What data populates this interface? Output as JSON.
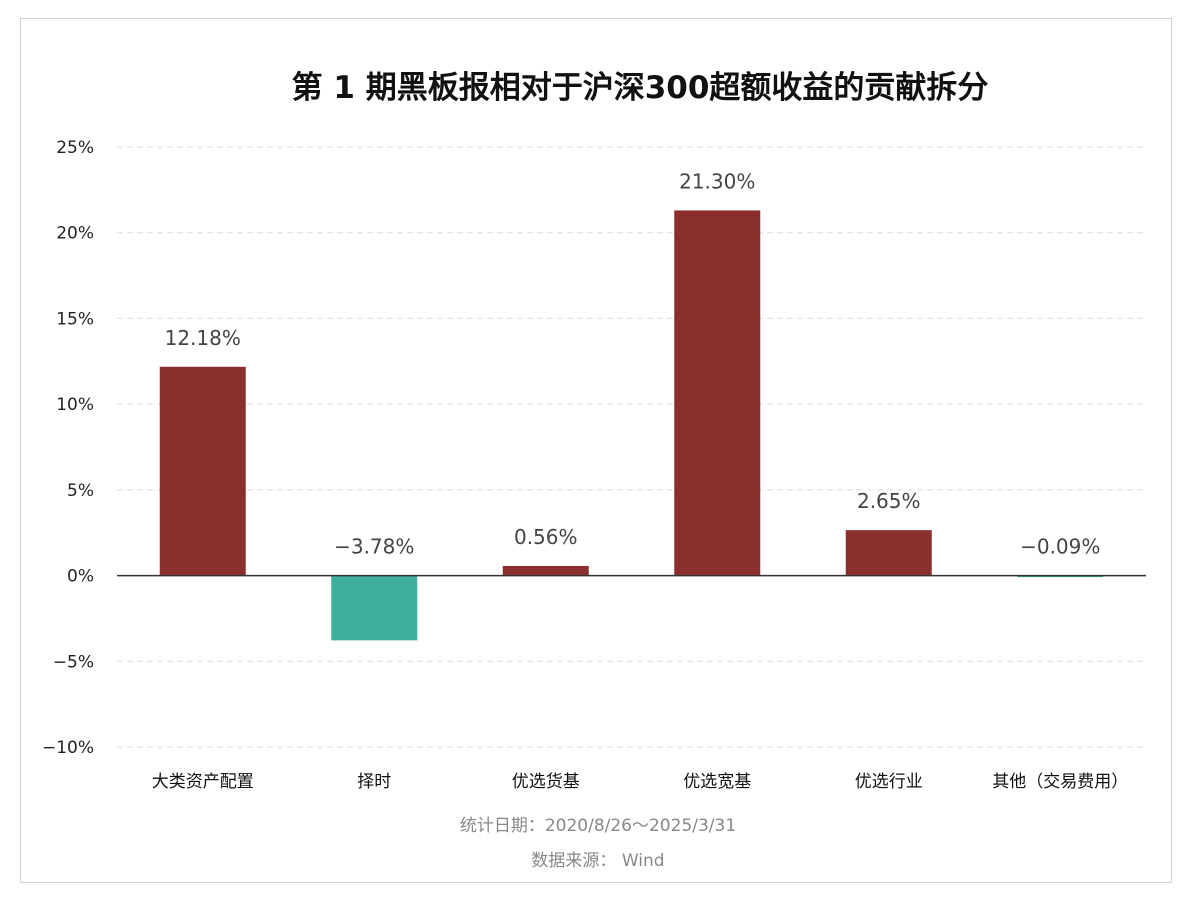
{
  "chart_data": {
    "type": "bar",
    "title": "第 1 期黑板报相对于沪深300超额收益的贡献拆分",
    "categories": [
      "大类资产配置",
      "择时",
      "优选货基",
      "优选宽基",
      "优选行业",
      "其他（交易费用）"
    ],
    "values": [
      12.18,
      -3.78,
      0.56,
      21.3,
      2.65,
      -0.09
    ],
    "data_labels": [
      "12.18%",
      "−3.78%",
      "0.56%",
      "21.30%",
      "2.65%",
      "−0.09%"
    ],
    "ylim": [
      -10,
      25
    ],
    "yticks": [
      25,
      20,
      15,
      10,
      5,
      0,
      -5,
      -10
    ],
    "ytick_labels": [
      "25%",
      "20%",
      "15%",
      "10%",
      "5%",
      "0%",
      "−5%",
      "−10%"
    ],
    "xlabel": "",
    "ylabel": "",
    "grid": true,
    "colors": {
      "positive": "#8b2e2e",
      "negative": "#3daf9c"
    }
  },
  "footer": {
    "date_range": "统计日期：2020/8/26～2025/3/31",
    "source": "数据来源： Wind"
  }
}
